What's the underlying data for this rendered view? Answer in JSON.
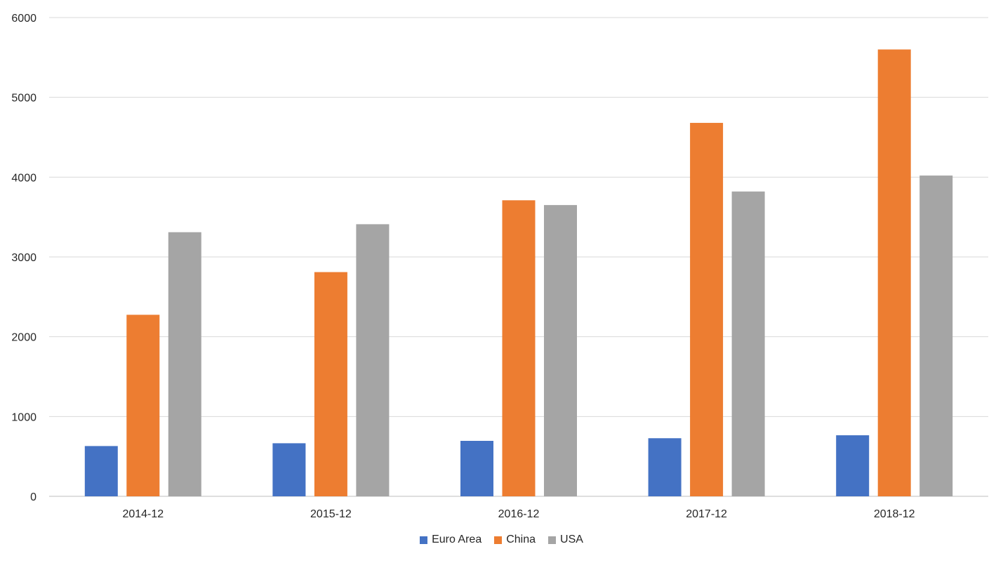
{
  "chart_data": {
    "type": "bar",
    "title": "",
    "xlabel": "",
    "ylabel": "",
    "categories": [
      "2014-12",
      "2015-12",
      "2016-12",
      "2017-12",
      "2018-12"
    ],
    "series": [
      {
        "name": "Euro Area",
        "color": "#4472C4",
        "values": [
          630,
          665,
          695,
          728,
          765
        ]
      },
      {
        "name": "China",
        "color": "#ED7D31",
        "values": [
          2275,
          2810,
          3710,
          4680,
          5600
        ]
      },
      {
        "name": "USA",
        "color": "#A5A5A5",
        "values": [
          3310,
          3410,
          3650,
          3820,
          4020
        ]
      }
    ],
    "ylim": [
      0,
      6000
    ],
    "yticks": [
      "0",
      "1000",
      "2000",
      "3000",
      "4000",
      "5000",
      "6000"
    ],
    "grid": true,
    "legend_position": "bottom"
  }
}
